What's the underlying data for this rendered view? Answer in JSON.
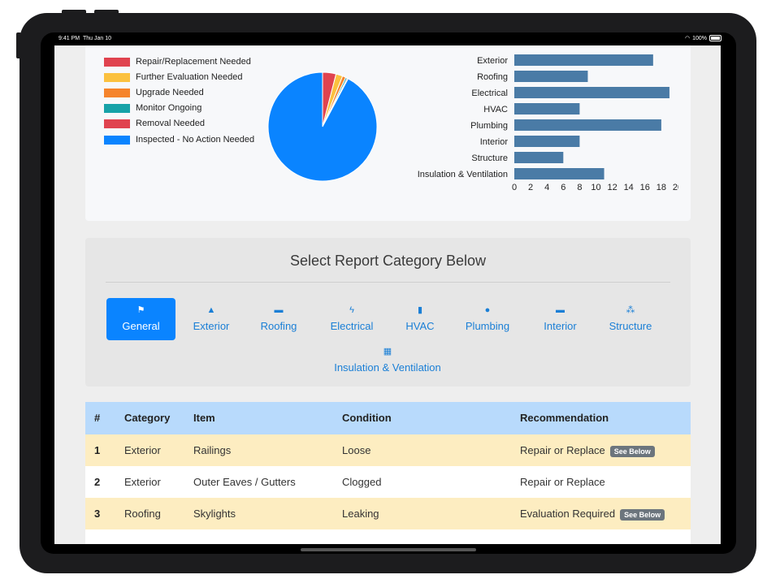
{
  "status": {
    "time": "9:41 PM",
    "date": "Thu Jan 10",
    "battery": "100%"
  },
  "legend": [
    {
      "label": "Repair/Replacement Needed",
      "color": "#e0434f"
    },
    {
      "label": "Further Evaluation Needed",
      "color": "#fbc13f"
    },
    {
      "label": "Upgrade Needed",
      "color": "#f5842c"
    },
    {
      "label": "Monitor Ongoing",
      "color": "#17a2a8"
    },
    {
      "label": "Removal Needed",
      "color": "#e0434f"
    },
    {
      "label": "Inspected - No Action Needed",
      "color": "#0a84ff"
    }
  ],
  "chart_data": [
    {
      "type": "pie",
      "labels": [
        "Repair/Replacement Needed",
        "Further Evaluation Needed",
        "Upgrade Needed",
        "Monitor Ongoing",
        "Removal Needed",
        "Inspected - No Action Needed"
      ],
      "values": [
        4,
        2,
        1,
        0.5,
        0.3,
        92.2
      ],
      "colors": [
        "#e0434f",
        "#fbc13f",
        "#f5842c",
        "#17a2a8",
        "#e0434f",
        "#0a84ff"
      ]
    },
    {
      "type": "bar",
      "orientation": "horizontal",
      "categories": [
        "Exterior",
        "Roofing",
        "Electrical",
        "HVAC",
        "Plumbing",
        "Interior",
        "Structure",
        "Insulation & Ventilation"
      ],
      "values": [
        17,
        9,
        19,
        8,
        18,
        8,
        6,
        11
      ],
      "xlim": [
        0,
        20
      ],
      "xticks": [
        "0",
        "2",
        "4",
        "6",
        "8",
        "10",
        "12",
        "14",
        "16",
        "18",
        "20"
      ],
      "color": "#4a7ba6"
    }
  ],
  "category_panel": {
    "title": "Select Report Category Below",
    "buttons": [
      {
        "label": "General",
        "icon": "flag-icon",
        "glyph": "⚑",
        "active": true
      },
      {
        "label": "Exterior",
        "icon": "tree-icon",
        "glyph": "▲",
        "active": false
      },
      {
        "label": "Roofing",
        "icon": "roof-icon",
        "glyph": "▬",
        "active": false
      },
      {
        "label": "Electrical",
        "icon": "bolt-icon",
        "glyph": "ϟ",
        "active": false
      },
      {
        "label": "HVAC",
        "icon": "thermometer-icon",
        "glyph": "🌡",
        "active": false
      },
      {
        "label": "Plumbing",
        "icon": "drop-icon",
        "glyph": "●",
        "active": false
      },
      {
        "label": "Interior",
        "icon": "couch-icon",
        "glyph": "▬",
        "active": false
      },
      {
        "label": "Structure",
        "icon": "cubes-icon",
        "glyph": "⁂",
        "active": false
      },
      {
        "label": "Insulation & Ventilation",
        "icon": "ventilation-icon",
        "glyph": "▦",
        "active": false
      }
    ]
  },
  "table": {
    "headers": [
      "#",
      "Category",
      "Item",
      "Condition",
      "Recommendation"
    ],
    "rows": [
      {
        "num": "1",
        "category": "Exterior",
        "item": "Railings",
        "condition": "Loose",
        "recommendation": "Repair or Replace",
        "badge": "See Below"
      },
      {
        "num": "2",
        "category": "Exterior",
        "item": "Outer Eaves / Gutters",
        "condition": "Clogged",
        "recommendation": "Repair or Replace",
        "badge": ""
      },
      {
        "num": "3",
        "category": "Roofing",
        "item": "Skylights",
        "condition": "Leaking",
        "recommendation": "Evaluation Required",
        "badge": "See Below"
      }
    ]
  }
}
